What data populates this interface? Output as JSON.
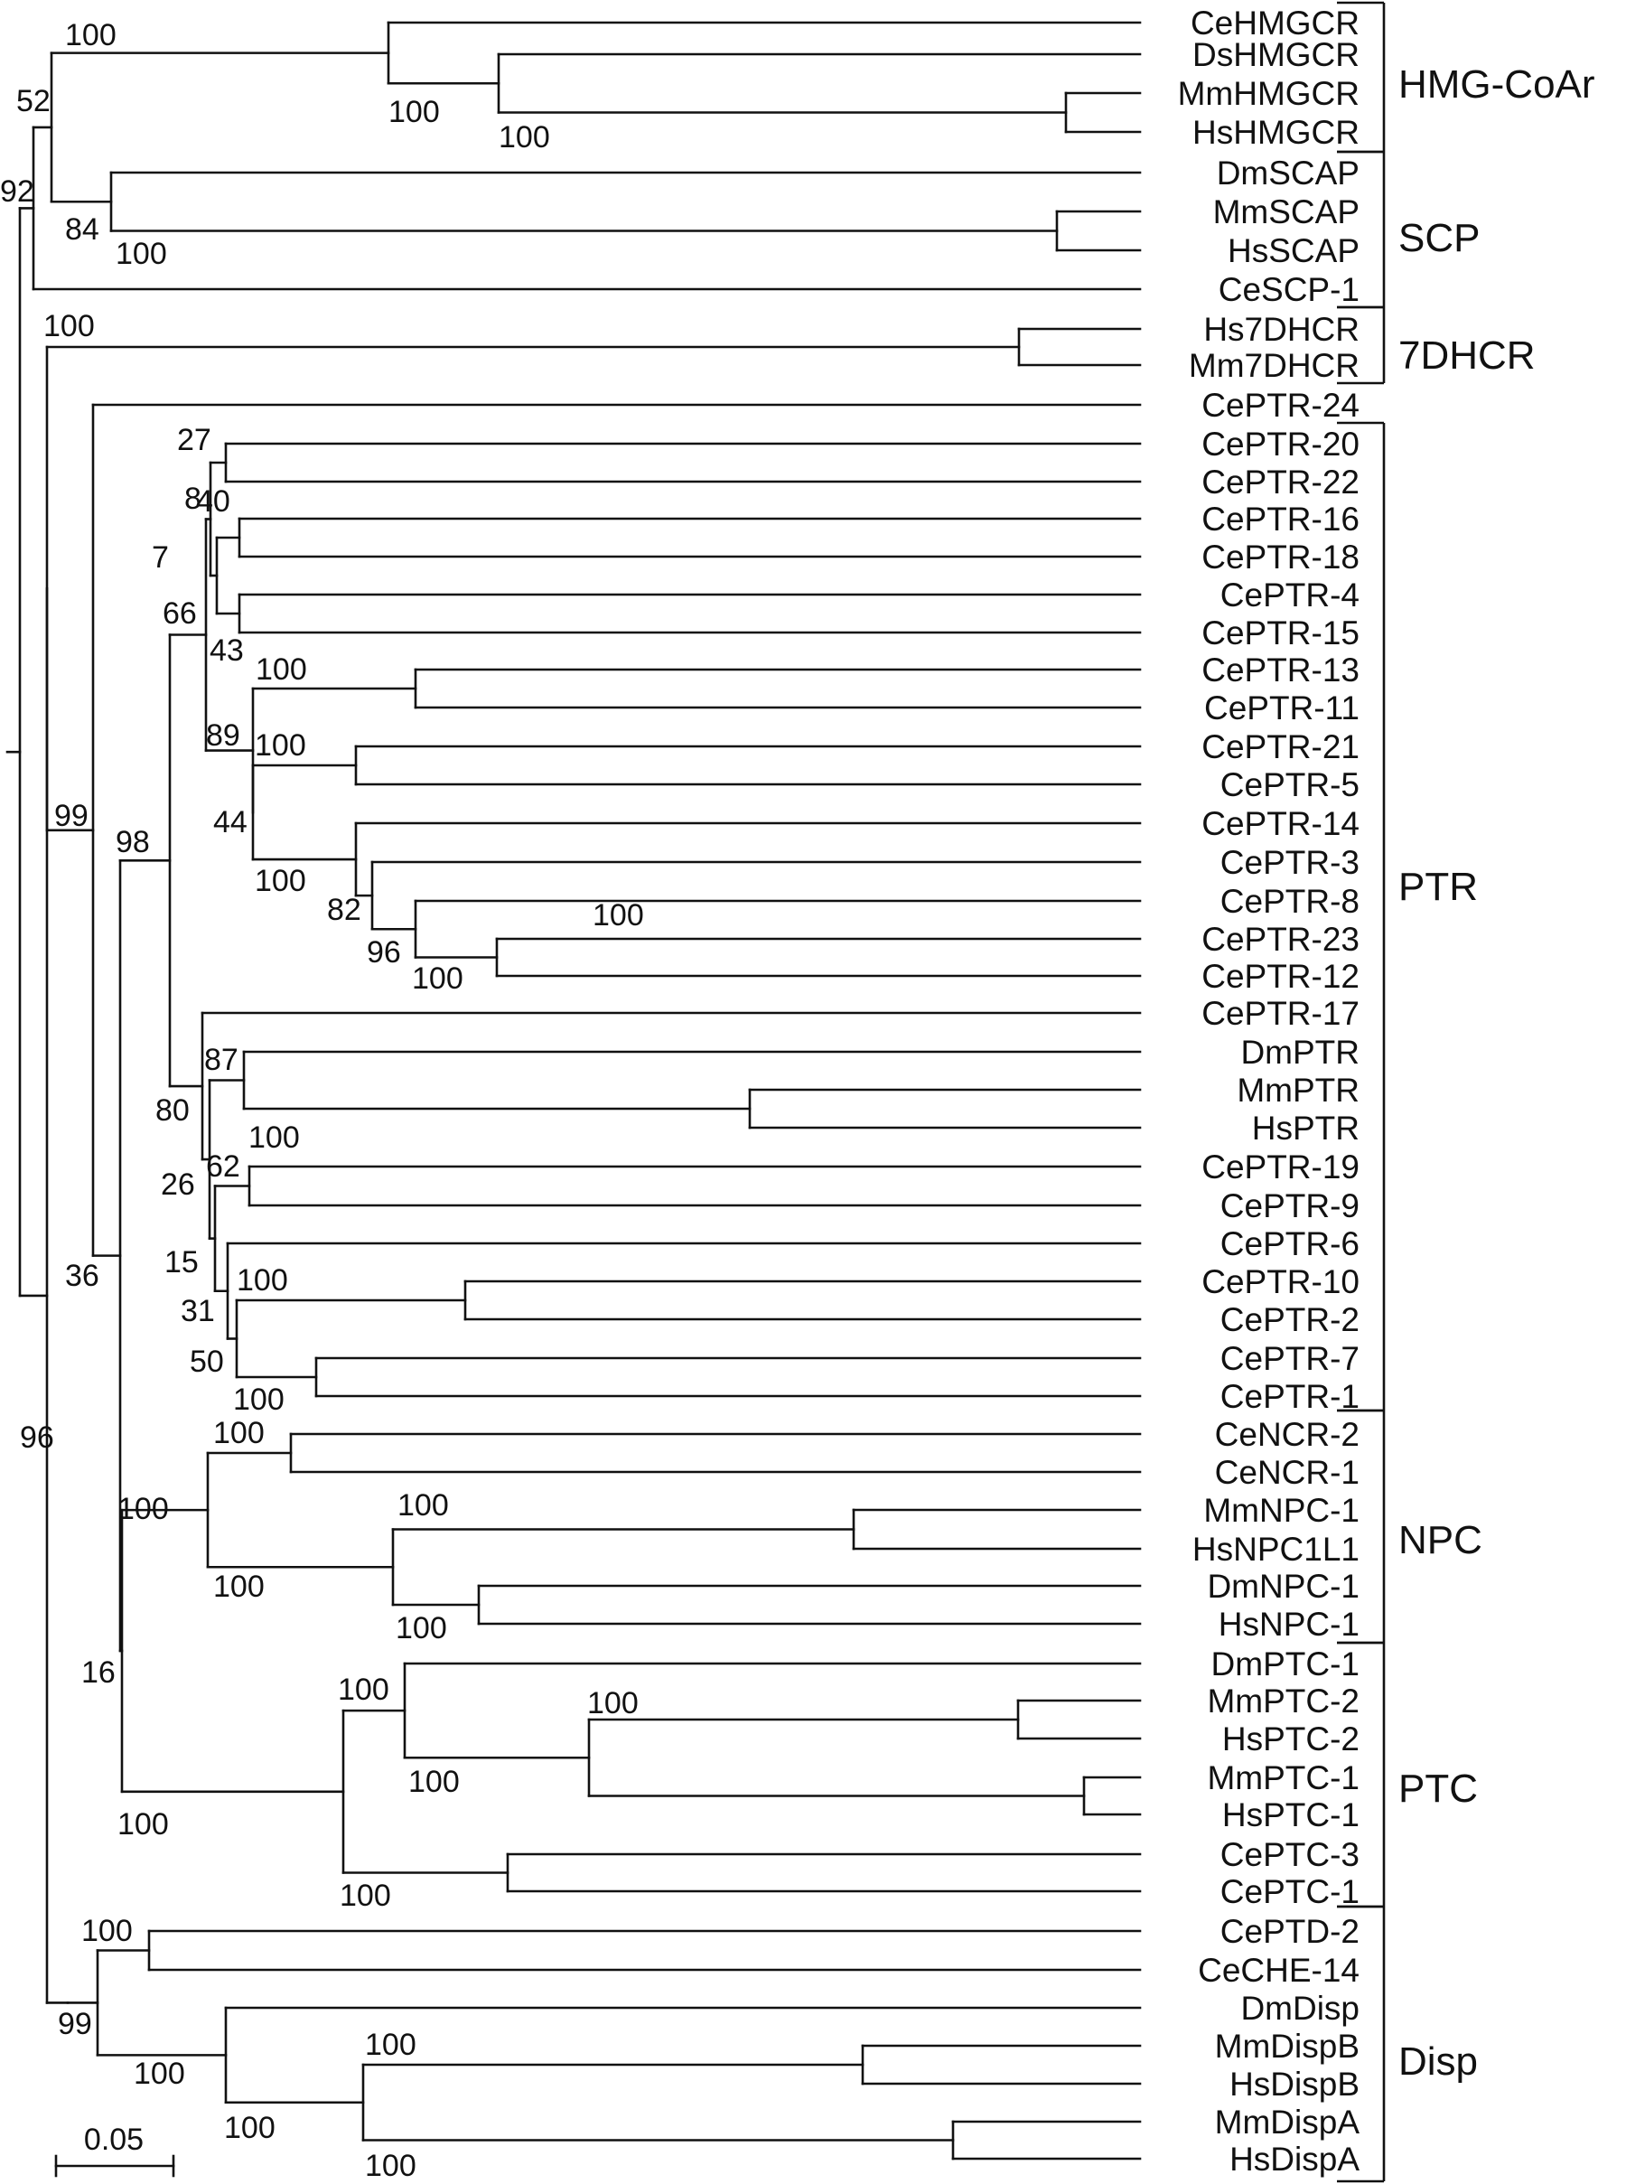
{
  "scale_bar": {
    "label": "0.05"
  },
  "clades": [
    "HMG-CoAr",
    "SCP",
    "7DHCR",
    "PTR",
    "NPC",
    "PTC",
    "Disp"
  ],
  "leaves": [
    "CeHMGCR",
    "DsHMGCR",
    "MmHMGCR",
    "HsHMGCR",
    "DmSCAP",
    "MmSCAP",
    "HsSCAP",
    "CeSCP-1",
    "Hs7DHCR",
    "Mm7DHCR",
    "CePTR-24",
    "CePTR-20",
    "CePTR-22",
    "CePTR-16",
    "CePTR-18",
    "CePTR-4",
    "CePTR-15",
    "CePTR-13",
    "CePTR-11",
    "CePTR-21",
    "CePTR-5",
    "CePTR-14",
    "CePTR-3",
    "CePTR-8",
    "CePTR-23",
    "CePTR-12",
    "CePTR-17",
    "DmPTR",
    "MmPTR",
    "HsPTR",
    "CePTR-19",
    "CePTR-9",
    "CePTR-6",
    "CePTR-10",
    "CePTR-2",
    "CePTR-7",
    "CePTR-1",
    "CeNCR-2",
    "CeNCR-1",
    "MmNPC-1",
    "HsNPC1L1",
    "DmNPC-1",
    "HsNPC-1",
    "DmPTC-1",
    "MmPTC-2",
    "HsPTC-2",
    "MmPTC-1",
    "HsPTC-1",
    "CePTC-3",
    "CePTC-1",
    "CePTD-2",
    "CeCHE-14",
    "DmDisp",
    "MmDispB",
    "HsDispB",
    "MmDispA",
    "HsDispA"
  ],
  "support_values": [
    "100",
    "100",
    "100",
    "52",
    "92",
    "84",
    "100",
    "100",
    "27",
    "8",
    "40",
    "7",
    "66",
    "43",
    "100",
    "89",
    "100",
    "44",
    "100",
    "82",
    "96",
    "100",
    "99",
    "98",
    "87",
    "80",
    "100",
    "26",
    "62",
    "15",
    "100",
    "31",
    "50",
    "100",
    "36",
    "96",
    "100",
    "100",
    "100",
    "100",
    "100",
    "16",
    "100",
    "100",
    "100",
    "100",
    "100",
    "100",
    "100",
    "99",
    "100",
    "100",
    "100",
    "100"
  ]
}
